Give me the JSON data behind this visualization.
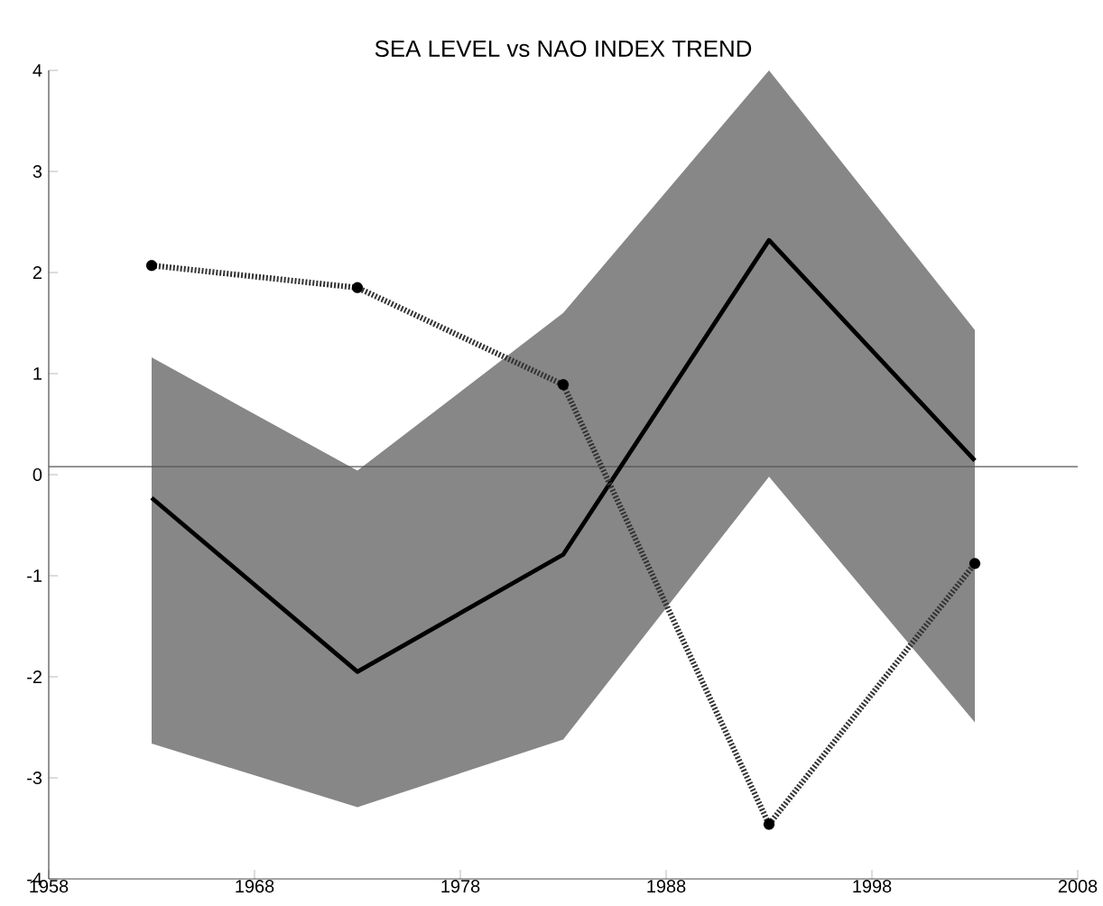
{
  "chart_data": {
    "type": "line",
    "title": "SEA LEVEL vs NAO INDEX TREND",
    "x": [
      1963,
      1973,
      1983,
      1993,
      2003
    ],
    "series": [
      {
        "color": "#000000",
        "values": [
          -0.23,
          -1.95,
          -0.79,
          2.32,
          0.14
        ],
        "lower": [
          -2.66,
          -3.29,
          -2.62,
          -0.02,
          -2.45
        ],
        "upper": [
          1.16,
          0.04,
          1.6,
          4.0,
          1.43
        ],
        "marker": "none",
        "line_style": "solid"
      },
      {
        "color": "#333333",
        "values": [
          2.07,
          1.85,
          0.89,
          -3.46,
          -0.88
        ],
        "marker": "circle",
        "line_style": "dotted"
      }
    ],
    "xlim": [
      1958,
      2008
    ],
    "xticks": [
      1958,
      1968,
      1978,
      1988,
      1998,
      2008
    ],
    "ylim": [
      -4,
      4
    ],
    "yticks": [
      -4,
      -3,
      -2,
      -1,
      0,
      1,
      2,
      3,
      4
    ],
    "ref_lines": [
      {
        "axis": "y",
        "value": 0.08,
        "color": "#555555"
      }
    ],
    "grid": false
  }
}
